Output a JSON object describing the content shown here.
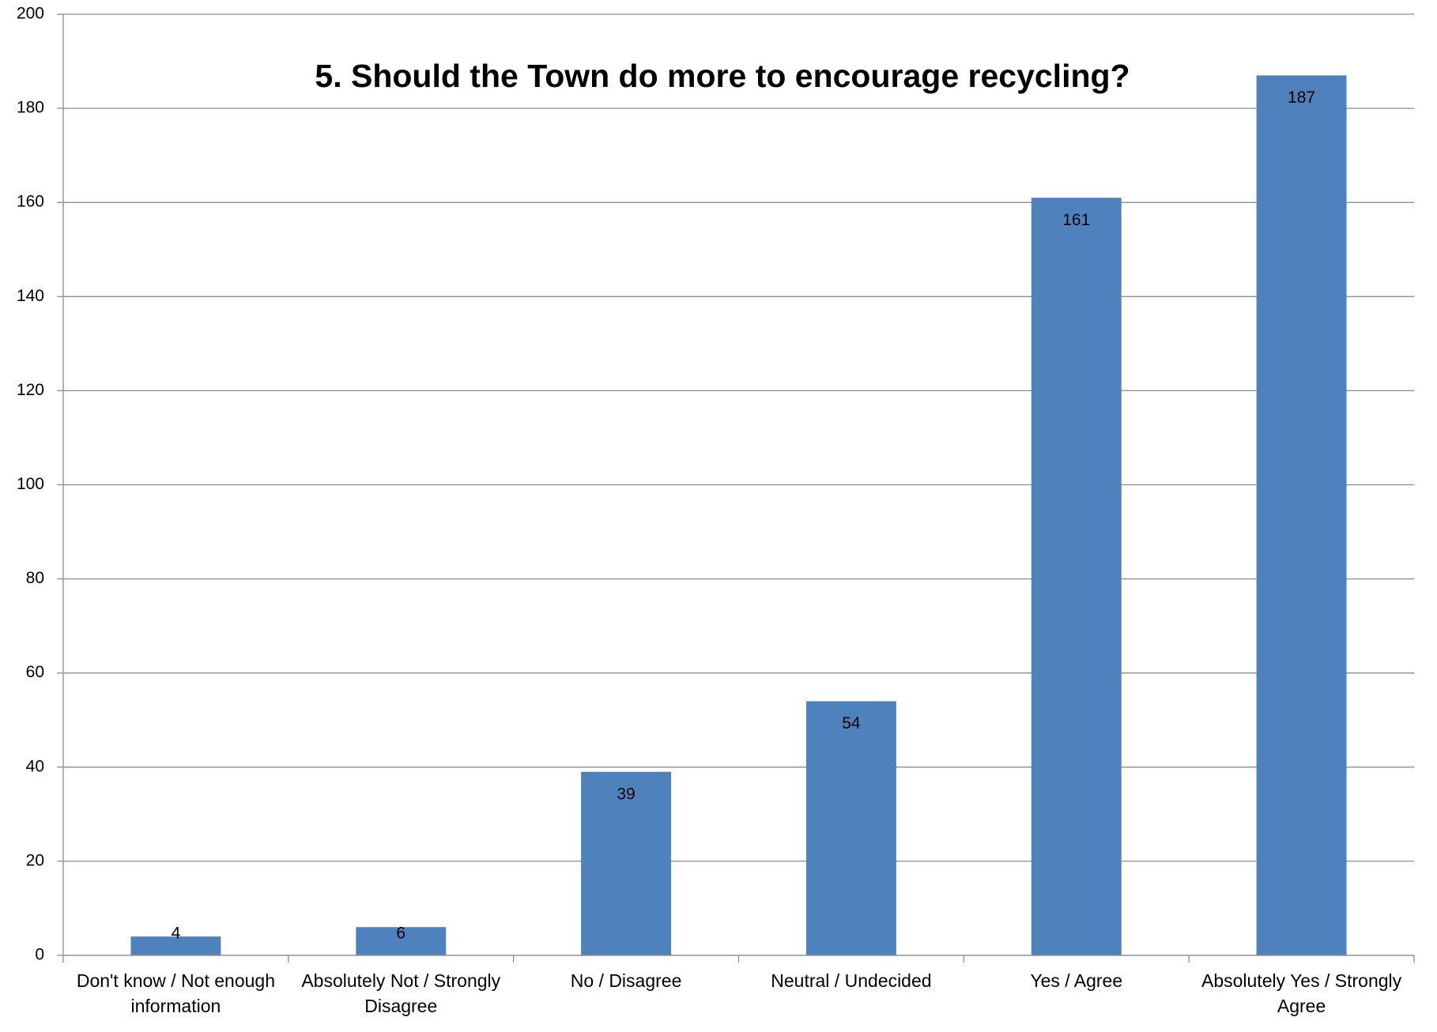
{
  "chart_data": {
    "type": "bar",
    "title": "5. Should the Town do more to encourage recycling?",
    "categories": [
      "Don't know / Not enough information",
      "Absolutely Not / Strongly Disagree",
      "No / Disagree",
      "Neutral / Undecided",
      "Yes / Agree",
      "Absolutely Yes / Strongly Agree"
    ],
    "values": [
      4,
      6,
      39,
      54,
      161,
      187
    ],
    "color": "#4f81bd",
    "ylim": [
      0,
      200
    ],
    "yticks": [
      0,
      20,
      40,
      60,
      80,
      100,
      120,
      140,
      160,
      180,
      200
    ],
    "grid": true
  }
}
